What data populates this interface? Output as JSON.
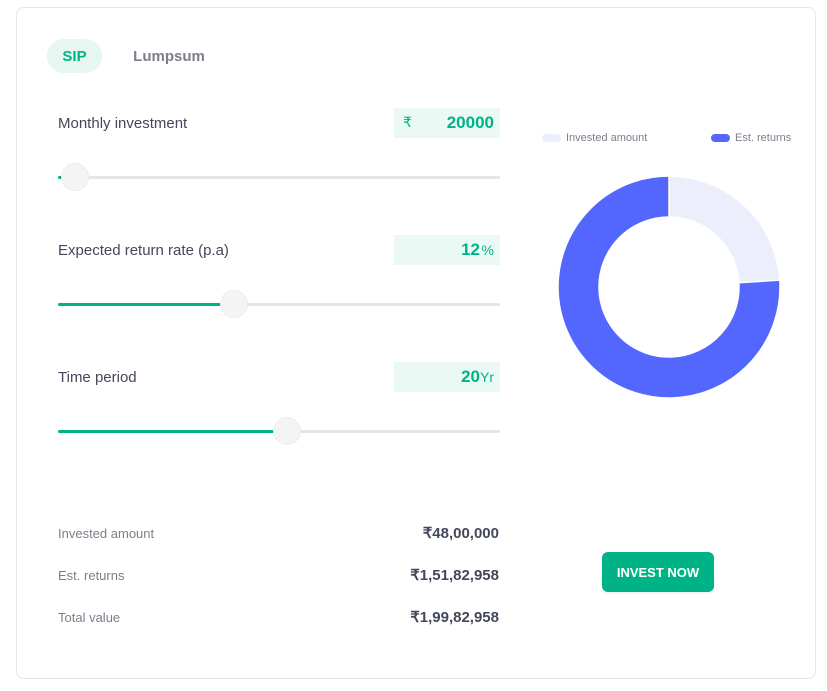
{
  "tabs": {
    "sip": "SIP",
    "lumpsum": "Lumpsum"
  },
  "currency_symbol": "₹",
  "sliders": {
    "monthly": {
      "label": "Monthly investment",
      "value": "20000",
      "fill_fraction": 0.02
    },
    "rate": {
      "label": "Expected return rate (p.a)",
      "value": "12",
      "unit": "%",
      "fill_fraction": 0.38
    },
    "period": {
      "label": "Time period",
      "value": "20",
      "unit": "Yr",
      "fill_fraction": 0.5
    }
  },
  "legend": {
    "invested": {
      "label": "Invested amount",
      "color": "#eceefb"
    },
    "returns": {
      "label": "Est. returns",
      "color": "#5367ff"
    }
  },
  "chart_data": {
    "type": "pie",
    "categories": [
      "Invested amount",
      "Est. returns"
    ],
    "values": [
      4800000,
      15182958
    ]
  },
  "summary": {
    "invested_label": "Invested amount",
    "invested_value": "₹48,00,000",
    "returns_label": "Est. returns",
    "returns_value": "₹1,51,82,958",
    "total_label": "Total value",
    "total_value": "₹1,99,82,958"
  },
  "cta": {
    "label": "INVEST NOW"
  }
}
